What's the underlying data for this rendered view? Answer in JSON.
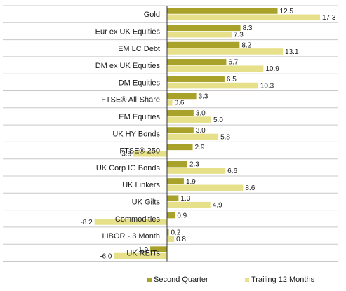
{
  "chart_data": {
    "type": "bar",
    "orientation": "horizontal",
    "categories": [
      "Gold",
      "Eur ex UK Equities",
      "EM LC Debt",
      "DM ex UK Equities",
      "DM Equities",
      "FTSE® All-Share",
      "EM Equities",
      "UK HY Bonds",
      "FTSE® 250",
      "UK Corp IG Bonds",
      "UK Linkers",
      "UK Gilts",
      "Commodities",
      "LIBOR - 3 Month",
      "UK REITs"
    ],
    "series": [
      {
        "name": "Second Quarter",
        "color": "#a9a22a",
        "values": [
          12.5,
          8.3,
          8.2,
          6.7,
          6.5,
          3.3,
          3.0,
          3.0,
          2.9,
          2.3,
          1.9,
          1.3,
          0.9,
          0.2,
          -1.9
        ]
      },
      {
        "name": "Trailing 12 Months",
        "color": "#e6e08a",
        "values": [
          17.3,
          7.3,
          13.1,
          10.9,
          10.3,
          0.6,
          5.0,
          5.8,
          -3.8,
          6.6,
          8.6,
          4.9,
          -8.2,
          0.8,
          -6.0
        ]
      }
    ],
    "value_labels": {
      "Second Quarter": [
        "12.5",
        "8.3",
        "8.2",
        "6.7",
        "6.5",
        "3.3",
        "3.0",
        "3.0",
        "2.9",
        "2.3",
        "1.9",
        "1.3",
        "0.9",
        "0.2",
        "-1.9"
      ],
      "Trailing 12 Months": [
        "17.3",
        "7.3",
        "13.1",
        "10.9",
        "10.3",
        "0.6",
        "5.0",
        "5.8",
        "-3.8",
        "6.6",
        "8.6",
        "4.9",
        "-8.2",
        "0.8",
        "-6.0"
      ]
    },
    "title": "",
    "xlabel": "",
    "ylabel": "",
    "grid": false,
    "gridline_color": "#c8c8c8",
    "legend_position": "bottom-right"
  }
}
